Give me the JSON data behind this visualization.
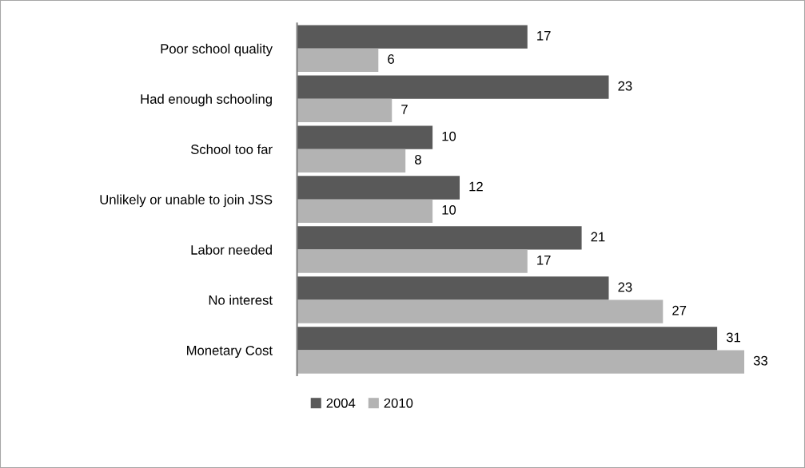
{
  "chart_data": {
    "type": "bar",
    "orientation": "horizontal",
    "categories": [
      "Poor school quality",
      "Had enough schooling",
      "School too far",
      "Unlikely or unable to join JSS",
      "Labor needed",
      "No interest",
      "Monetary Cost"
    ],
    "series": [
      {
        "name": "2004",
        "color": "#595959",
        "values": [
          17,
          23,
          10,
          12,
          21,
          23,
          31
        ]
      },
      {
        "name": "2010",
        "color": "#b3b3b3",
        "values": [
          6,
          7,
          8,
          10,
          17,
          27,
          33
        ]
      }
    ],
    "data_labels": true,
    "legend": "bottom",
    "grid": false
  }
}
